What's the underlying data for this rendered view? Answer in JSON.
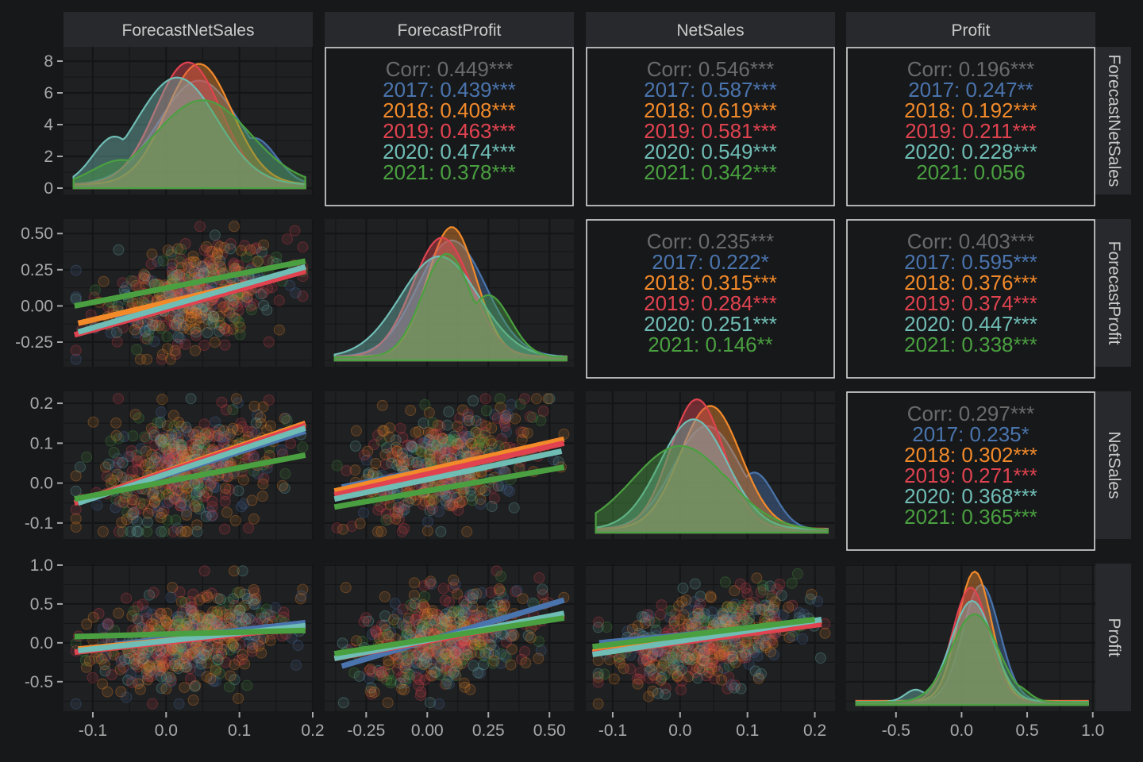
{
  "chart_data": {
    "type": "scatter",
    "title": "",
    "variables": [
      "ForecastNetSales",
      "ForecastProfit",
      "NetSales",
      "Profit"
    ],
    "groups": [
      "2017",
      "2018",
      "2019",
      "2020",
      "2021"
    ],
    "group_colors": {
      "2017": "#4a74ad",
      "2018": "#f28a2a",
      "2019": "#e0434f",
      "2020": "#6fbdb5",
      "2021": "#4aa040"
    },
    "overall_color": "#6a6a6a",
    "grid": true,
    "axes": {
      "ForecastNetSales": {
        "range": [
          -0.14,
          0.2
        ],
        "ticks": [
          -0.1,
          0.0,
          0.1,
          0.2
        ],
        "tick_labels": [
          "-0.1",
          "0.0",
          "0.1",
          "0.2"
        ]
      },
      "ForecastProfit": {
        "range": [
          -0.42,
          0.6
        ],
        "ticks": [
          -0.25,
          0.0,
          0.25,
          0.5
        ],
        "tick_labels": [
          "-0.25",
          "0.00",
          "0.25",
          "0.50"
        ]
      },
      "NetSales": {
        "range": [
          -0.14,
          0.23
        ],
        "ticks": [
          -0.1,
          0.0,
          0.1,
          0.2
        ],
        "tick_labels": [
          "-0.1",
          "0.0",
          "0.1",
          "0.2"
        ]
      },
      "Profit": {
        "range": [
          -0.88,
          1.02
        ],
        "ticks": [
          -0.5,
          0.0,
          0.5,
          1.0
        ],
        "tick_labels": [
          "-0.5",
          "0.0",
          "0.5",
          "1.0"
        ]
      }
    },
    "density_y_axis": {
      "range": [
        0,
        8.8
      ],
      "ticks": [
        0,
        2,
        4,
        6,
        8
      ],
      "tick_labels": [
        "0",
        "2",
        "4",
        "6",
        "8"
      ]
    },
    "correlations": [
      {
        "row": "ForecastNetSales",
        "col": "ForecastProfit",
        "overall": "Corr: 0.449***",
        "by_group": [
          "2017: 0.439***",
          "2018: 0.408***",
          "2019: 0.463***",
          "2020: 0.474***",
          "2021: 0.378***"
        ]
      },
      {
        "row": "ForecastNetSales",
        "col": "NetSales",
        "overall": "Corr: 0.546***",
        "by_group": [
          "2017: 0.587***",
          "2018: 0.619***",
          "2019: 0.581***",
          "2020: 0.549***",
          "2021: 0.342***"
        ]
      },
      {
        "row": "ForecastNetSales",
        "col": "Profit",
        "overall": "Corr: 0.196***",
        "by_group": [
          "2017: 0.247**",
          "2018: 0.192***",
          "2019: 0.211***",
          "2020: 0.228***",
          "2021: 0.056"
        ]
      },
      {
        "row": "ForecastProfit",
        "col": "NetSales",
        "overall": "Corr: 0.235***",
        "by_group": [
          "2017: 0.222*",
          "2018: 0.315***",
          "2019: 0.284***",
          "2020: 0.251***",
          "2021: 0.146**"
        ]
      },
      {
        "row": "ForecastProfit",
        "col": "Profit",
        "overall": "Corr: 0.403***",
        "by_group": [
          "2017: 0.595***",
          "2018: 0.376***",
          "2019: 0.374***",
          "2020: 0.447***",
          "2021: 0.338***"
        ]
      },
      {
        "row": "NetSales",
        "col": "Profit",
        "overall": "Corr: 0.297***",
        "by_group": [
          "2017: 0.235*",
          "2018: 0.302***",
          "2019: 0.271***",
          "2020: 0.368***",
          "2021: 0.365***"
        ]
      }
    ],
    "densities": {
      "ForecastNetSales": {
        "peaks": {
          "2017": 0.045,
          "2018": 0.045,
          "2019": 0.03,
          "2020": 0.015,
          "2021": 0.05
        },
        "peak_heights": {
          "2017": 7.1,
          "2018": 8.2,
          "2019": 8.3,
          "2020": 7.3,
          "2021": 5.8
        }
      },
      "ForecastProfit": {
        "peaks": {
          "2017": 0.1,
          "2018": 0.1,
          "2019": 0.06,
          "2020": 0.05,
          "2021": 0.08
        },
        "peak_heights": {
          "2017": 0.9,
          "2018": 1.0,
          "2019": 0.92,
          "2020": 0.78,
          "2021": 0.8
        }
      },
      "NetSales": {
        "peaks": {
          "2017": 0.04,
          "2018": 0.045,
          "2019": 0.025,
          "2020": 0.02,
          "2021": 0.0
        },
        "peak_heights": {
          "2017": 0.8,
          "2018": 0.95,
          "2019": 1.0,
          "2020": 0.85,
          "2021": 0.65
        }
      },
      "Profit": {
        "peaks": {
          "2017": 0.15,
          "2018": 0.1,
          "2019": 0.07,
          "2020": 0.08,
          "2021": 0.1
        },
        "peak_heights": {
          "2017": 0.9,
          "2018": 1.0,
          "2019": 0.88,
          "2020": 0.78,
          "2021": 0.68
        }
      }
    },
    "regression_lines": [
      {
        "x": "ForecastNetSales",
        "y": "ForecastProfit",
        "lines": {
          "2017": [
            [
              -0.07,
              -0.08
            ],
            [
              0.19,
              0.26
            ]
          ],
          "2018": [
            [
              -0.12,
              -0.12
            ],
            [
              0.19,
              0.25
            ]
          ],
          "2019": [
            [
              -0.125,
              -0.2
            ],
            [
              0.19,
              0.24
            ]
          ],
          "2020": [
            [
              -0.12,
              -0.18
            ],
            [
              0.19,
              0.27
            ]
          ],
          "2021": [
            [
              -0.125,
              0.0
            ],
            [
              0.19,
              0.31
            ]
          ]
        }
      },
      {
        "x": "ForecastNetSales",
        "y": "NetSales",
        "lines": {
          "2017": [
            [
              -0.07,
              -0.02
            ],
            [
              0.19,
              0.13
            ]
          ],
          "2018": [
            [
              -0.125,
              -0.05
            ],
            [
              0.19,
              0.15
            ]
          ],
          "2019": [
            [
              -0.125,
              -0.05
            ],
            [
              0.19,
              0.145
            ]
          ],
          "2020": [
            [
              -0.12,
              -0.05
            ],
            [
              0.19,
              0.138
            ]
          ],
          "2021": [
            [
              -0.125,
              -0.04
            ],
            [
              0.19,
              0.07
            ]
          ]
        }
      },
      {
        "x": "ForecastProfit",
        "y": "NetSales",
        "lines": {
          "2017": [
            [
              -0.35,
              -0.01
            ],
            [
              0.55,
              0.1
            ]
          ],
          "2018": [
            [
              -0.38,
              -0.02
            ],
            [
              0.56,
              0.11
            ]
          ],
          "2019": [
            [
              -0.38,
              -0.03
            ],
            [
              0.56,
              0.1
            ]
          ],
          "2020": [
            [
              -0.38,
              -0.04
            ],
            [
              0.55,
              0.08
            ]
          ],
          "2021": [
            [
              -0.38,
              -0.06
            ],
            [
              0.56,
              0.04
            ]
          ]
        }
      },
      {
        "x": "ForecastNetSales",
        "y": "Profit",
        "lines": {
          "2017": [
            [
              -0.07,
              -0.02
            ],
            [
              0.19,
              0.26
            ]
          ],
          "2018": [
            [
              -0.12,
              -0.08
            ],
            [
              0.19,
              0.2
            ]
          ],
          "2019": [
            [
              -0.125,
              -0.12
            ],
            [
              0.19,
              0.2
            ]
          ],
          "2020": [
            [
              -0.12,
              -0.1
            ],
            [
              0.19,
              0.22
            ]
          ],
          "2021": [
            [
              -0.125,
              0.08
            ],
            [
              0.19,
              0.16
            ]
          ]
        }
      },
      {
        "x": "ForecastProfit",
        "y": "Profit",
        "lines": {
          "2017": [
            [
              -0.35,
              -0.3
            ],
            [
              0.56,
              0.55
            ]
          ],
          "2018": [
            [
              -0.38,
              -0.2
            ],
            [
              0.56,
              0.36
            ]
          ],
          "2019": [
            [
              -0.38,
              -0.2
            ],
            [
              0.56,
              0.34
            ]
          ],
          "2020": [
            [
              -0.38,
              -0.2
            ],
            [
              0.56,
              0.38
            ]
          ],
          "2021": [
            [
              -0.38,
              -0.14
            ],
            [
              0.56,
              0.32
            ]
          ]
        }
      },
      {
        "x": "NetSales",
        "y": "Profit",
        "lines": {
          "2017": [
            [
              -0.12,
              0.0
            ],
            [
              0.2,
              0.26
            ]
          ],
          "2018": [
            [
              -0.13,
              -0.12
            ],
            [
              0.21,
              0.28
            ]
          ],
          "2019": [
            [
              -0.13,
              -0.14
            ],
            [
              0.21,
              0.24
            ]
          ],
          "2020": [
            [
              -0.13,
              -0.15
            ],
            [
              0.21,
              0.3
            ]
          ],
          "2021": [
            [
              -0.13,
              -0.05
            ],
            [
              0.2,
              0.3
            ]
          ]
        }
      }
    ]
  }
}
